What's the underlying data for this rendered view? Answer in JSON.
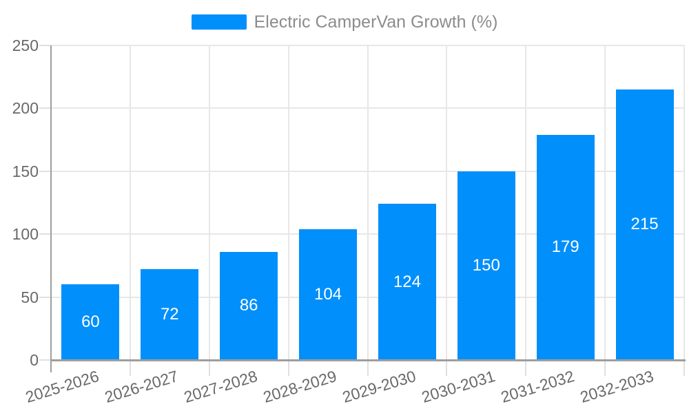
{
  "chart_data": {
    "type": "bar",
    "legend": "Electric CamperVan Growth (%)",
    "legend_position": "top",
    "categories": [
      "2025-2026",
      "2026-2027",
      "2027-2028",
      "2028-2029",
      "2029-2030",
      "2030-2031",
      "2031-2032",
      "2032-2033"
    ],
    "values": [
      60,
      72,
      86,
      104,
      124,
      150,
      179,
      215
    ],
    "series_name": "Electric CamperVan Growth (%)",
    "xlabel": "",
    "ylabel": "",
    "ylim": [
      0,
      250
    ],
    "yticks": [
      0,
      50,
      100,
      150,
      200,
      250
    ],
    "grid": true,
    "value_labels_position": "inside-center",
    "colors": {
      "bar": "#008FFB",
      "grid": "#e7e7e7",
      "tick": "#e0e0e0",
      "axis_line": "#9e9e9e",
      "axis_label": "#696969",
      "legend_text": "#8c8c8c",
      "value_label": "#ffffff",
      "background": "#ffffff"
    }
  }
}
